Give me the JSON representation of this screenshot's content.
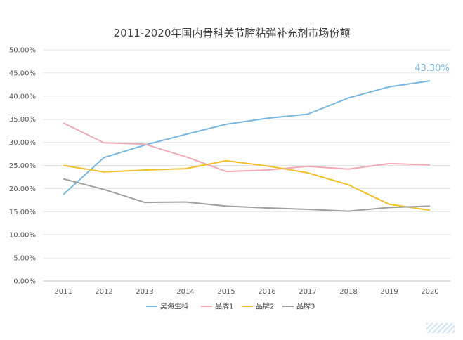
{
  "chart_data": {
    "type": "line",
    "title": "2011-2020年国内骨科关节腔粘弹补充剂市场份额",
    "xlabel": "",
    "ylabel": "",
    "categories": [
      "2011",
      "2012",
      "2013",
      "2014",
      "2015",
      "2016",
      "2017",
      "2018",
      "2019",
      "2020"
    ],
    "ylim": [
      0,
      50
    ],
    "yticks": [
      "0.00%",
      "5.00%",
      "10.00%",
      "15.00%",
      "20.00%",
      "25.00%",
      "30.00%",
      "35.00%",
      "40.00%",
      "45.00%",
      "50.00%"
    ],
    "grid": "horizontal",
    "legend_position": "bottom",
    "series": [
      {
        "name": "昊海生科",
        "color": "#7ab8e0",
        "values": [
          18.7,
          26.7,
          29.4,
          31.7,
          33.9,
          35.2,
          36.1,
          39.6,
          42.0,
          43.3
        ]
      },
      {
        "name": "品牌1",
        "color": "#f0aab5",
        "values": [
          34.2,
          29.9,
          29.6,
          26.9,
          23.7,
          24.0,
          24.8,
          24.2,
          25.4,
          25.1
        ]
      },
      {
        "name": "品牌2",
        "color": "#f2c02e",
        "values": [
          25.0,
          23.6,
          24.0,
          24.3,
          26.0,
          24.9,
          23.4,
          20.8,
          16.6,
          15.3
        ]
      },
      {
        "name": "品牌3",
        "color": "#a0a0a0",
        "values": [
          22.1,
          19.8,
          17.0,
          17.1,
          16.2,
          15.8,
          15.5,
          15.1,
          15.9,
          16.2
        ]
      }
    ],
    "annotations": [
      {
        "text": "43.30%",
        "series": "昊海生科",
        "category": "2020",
        "color": "#7ab8e0"
      }
    ]
  }
}
